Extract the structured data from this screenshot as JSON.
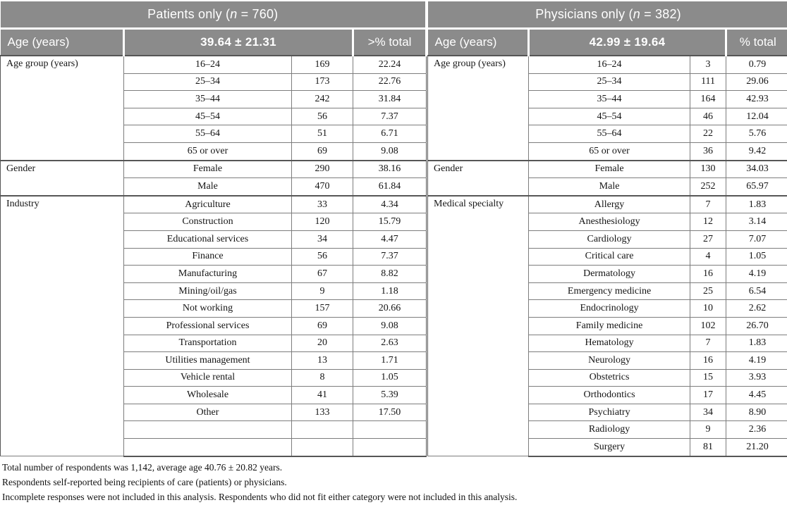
{
  "colors": {
    "header_bg": "#8b8b8b",
    "header_text": "#ffffff",
    "border_dark": "#565656",
    "border_light": "#7d7d7d",
    "body_text": "#151515"
  },
  "panels": [
    {
      "id": "patients",
      "title": {
        "pre": "Patients only (",
        "var": "n",
        "post": " = 760)"
      },
      "age_label": "Age (years)",
      "mean_sd": "39.64 ± 21.31",
      "pct_header": ">% total",
      "sections": [
        {
          "label": "Age group (years)",
          "rows": [
            [
              "16–24",
              "169",
              "22.24"
            ],
            [
              "25–34",
              "173",
              "22.76"
            ],
            [
              "35–44",
              "242",
              "31.84"
            ],
            [
              "45–54",
              "56",
              "7.37"
            ],
            [
              "55–64",
              "51",
              "6.71"
            ],
            [
              "65 or over",
              "69",
              "9.08"
            ]
          ]
        },
        {
          "label": "Gender",
          "rows": [
            [
              "Female",
              "290",
              "38.16"
            ],
            [
              "Male",
              "470",
              "61.84"
            ]
          ]
        },
        {
          "label": "Industry",
          "rows": [
            [
              "Agriculture",
              "33",
              "4.34"
            ],
            [
              "Construction",
              "120",
              "15.79"
            ],
            [
              "Educational services",
              "34",
              "4.47"
            ],
            [
              "Finance",
              "56",
              "7.37"
            ],
            [
              "Manufacturing",
              "67",
              "8.82"
            ],
            [
              "Mining/oil/gas",
              "9",
              "1.18"
            ],
            [
              "Not working",
              "157",
              "20.66"
            ],
            [
              "Professional services",
              "69",
              "9.08"
            ],
            [
              "Transportation",
              "20",
              "2.63"
            ],
            [
              "Utilities management",
              "13",
              "1.71"
            ],
            [
              "Vehicle rental",
              "8",
              "1.05"
            ],
            [
              "Wholesale",
              "41",
              "5.39"
            ],
            [
              "Other",
              "133",
              "17.50"
            ],
            [
              "",
              "",
              ""
            ],
            [
              "",
              "",
              ""
            ]
          ]
        }
      ]
    },
    {
      "id": "physicians",
      "title": {
        "pre": "Physicians only (",
        "var": "n",
        "post": " = 382)"
      },
      "age_label": "Age (years)",
      "mean_sd": "42.99 ± 19.64",
      "pct_header": "% total",
      "sections": [
        {
          "label": "Age group (years)",
          "rows": [
            [
              "16–24",
              "3",
              "0.79"
            ],
            [
              "25–34",
              "111",
              "29.06"
            ],
            [
              "35–44",
              "164",
              "42.93"
            ],
            [
              "45–54",
              "46",
              "12.04"
            ],
            [
              "55–64",
              "22",
              "5.76"
            ],
            [
              "65 or over",
              "36",
              "9.42"
            ]
          ]
        },
        {
          "label": "Gender",
          "rows": [
            [
              "Female",
              "130",
              "34.03"
            ],
            [
              "Male",
              "252",
              "65.97"
            ]
          ]
        },
        {
          "label": "Medical specialty",
          "rows": [
            [
              "Allergy",
              "7",
              "1.83"
            ],
            [
              "Anesthesiology",
              "12",
              "3.14"
            ],
            [
              "Cardiology",
              "27",
              "7.07"
            ],
            [
              "Critical care",
              "4",
              "1.05"
            ],
            [
              "Dermatology",
              "16",
              "4.19"
            ],
            [
              "Emergency medicine",
              "25",
              "6.54"
            ],
            [
              "Endocrinology",
              "10",
              "2.62"
            ],
            [
              "Family medicine",
              "102",
              "26.70"
            ],
            [
              "Hematology",
              "7",
              "1.83"
            ],
            [
              "Neurology",
              "16",
              "4.19"
            ],
            [
              "Obstetrics",
              "15",
              "3.93"
            ],
            [
              "Orthodontics",
              "17",
              "4.45"
            ],
            [
              "Psychiatry",
              "34",
              "8.90"
            ],
            [
              "Radiology",
              "9",
              "2.36"
            ],
            [
              "Surgery",
              "81",
              "21.20"
            ]
          ]
        }
      ]
    }
  ],
  "footnotes": [
    "Total number of respondents was 1,142, average age 40.76 ± 20.82 years.",
    "Respondents self-reported being recipients of care (patients) or physicians.",
    "Incomplete responses were not included in this analysis. Respondents who did not fit either category were not included in this analysis."
  ]
}
